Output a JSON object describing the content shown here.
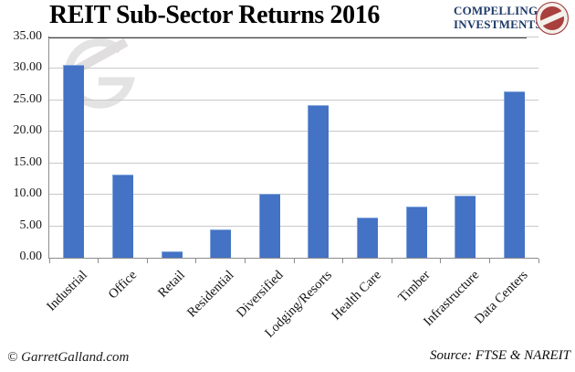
{
  "header": {
    "title": "REIT Sub-Sector Returns 2016",
    "logo": {
      "line1": "COMPELLING",
      "line2": "INVESTMENTS",
      "text_color": "#1e3a68",
      "seal_color": "#a8403e"
    }
  },
  "chart_data": {
    "type": "bar",
    "title": "REIT Sub-Sector Returns 2016",
    "categories": [
      "Industrial",
      "Office",
      "Retail",
      "Residential",
      "Diversified",
      "Lodging/Resorts",
      "Health Care",
      "Timber",
      "Infrastructure",
      "Data Centers"
    ],
    "values": [
      30.7,
      13.2,
      1.0,
      4.5,
      10.1,
      24.3,
      6.4,
      8.2,
      9.9,
      26.4
    ],
    "xlabel": "",
    "ylabel": "",
    "ylim": [
      0,
      35
    ],
    "ytick_values": [
      0,
      5,
      10,
      15,
      20,
      25,
      30,
      35
    ],
    "ytick_labels": [
      "0.00",
      "5.00",
      "10.00",
      "15.00",
      "20.00",
      "25.00",
      "30.00",
      "35.00"
    ],
    "bar_color": "#4472c4",
    "grid": true,
    "legend_position": "none"
  },
  "footer": {
    "copyright": "© GarretGalland.com",
    "source": "Source: FTSE & NAREIT"
  }
}
